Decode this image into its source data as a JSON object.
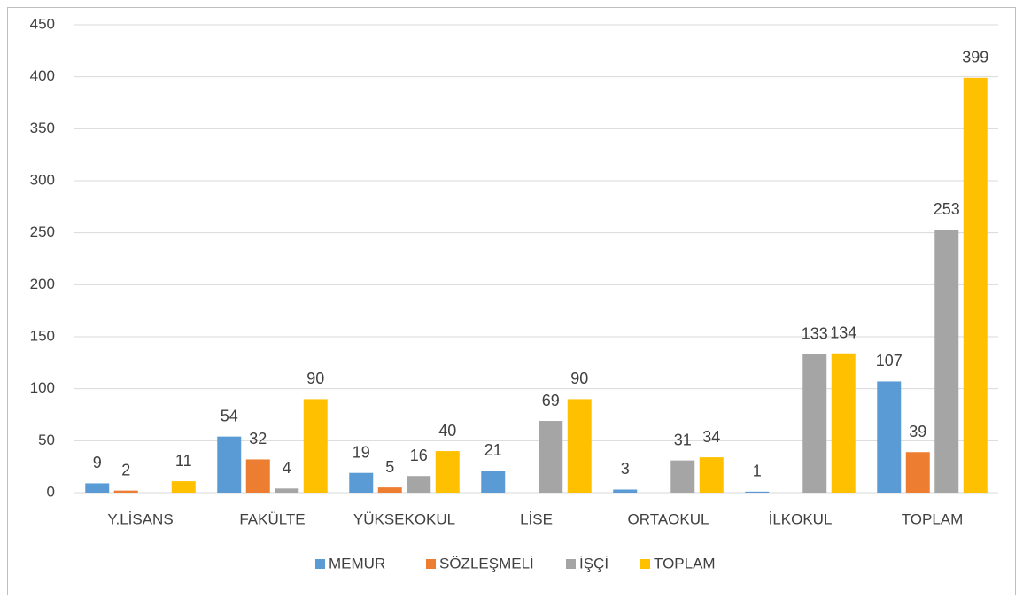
{
  "chart_data": {
    "type": "bar",
    "categories": [
      "Y.LİSANS",
      "FAKÜLTE",
      "YÜKSEKOKUL",
      "LİSE",
      "ORTAOKUL",
      "İLKOKUL",
      "TOPLAM"
    ],
    "series": [
      {
        "name": "MEMUR",
        "color": "#5b9bd5",
        "values": [
          9,
          54,
          19,
          21,
          3,
          1,
          107
        ]
      },
      {
        "name": "SÖZLEŞMELİ",
        "color": "#ed7d31",
        "values": [
          2,
          32,
          5,
          null,
          null,
          null,
          39
        ]
      },
      {
        "name": "İŞÇİ",
        "color": "#a5a5a5",
        "values": [
          null,
          4,
          16,
          69,
          31,
          133,
          253
        ]
      },
      {
        "name": "TOPLAM",
        "color": "#ffc000",
        "values": [
          11,
          90,
          40,
          90,
          34,
          134,
          399
        ]
      }
    ],
    "ylim": [
      0,
      450
    ],
    "yticks": [
      0,
      50,
      100,
      150,
      200,
      250,
      300,
      350,
      400,
      450
    ],
    "grid": true,
    "legend": "bottom"
  }
}
